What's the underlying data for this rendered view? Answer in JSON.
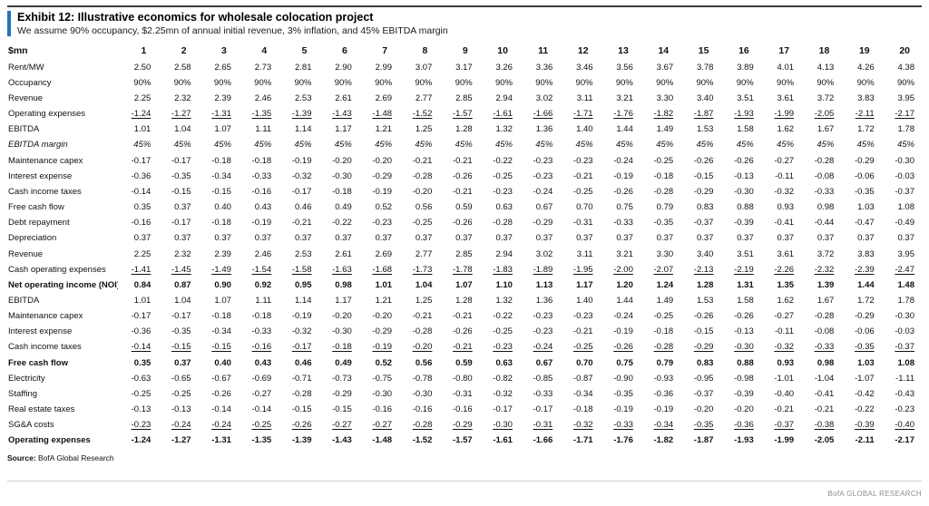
{
  "header": {
    "title": "Exhibit 12: Illustrative economics for wholesale colocation project",
    "subtitle": "We assume 90% occupancy, $2.25mn of annual initial revenue, 3% inflation, and 45% EBITDA margin"
  },
  "colors": {
    "accent_blue": "#2472ba",
    "brand_gray": "#8a8f94"
  },
  "table": {
    "unit_header": "$mn",
    "year_headers": [
      "1",
      "2",
      "3",
      "4",
      "5",
      "6",
      "7",
      "8",
      "9",
      "10",
      "11",
      "12",
      "13",
      "14",
      "15",
      "16",
      "17",
      "18",
      "19",
      "20"
    ],
    "rows": [
      {
        "label": "Rent/MW",
        "values": [
          "2.50",
          "2.58",
          "2.65",
          "2.73",
          "2.81",
          "2.90",
          "2.99",
          "3.07",
          "3.17",
          "3.26",
          "3.36",
          "3.46",
          "3.56",
          "3.67",
          "3.78",
          "3.89",
          "4.01",
          "4.13",
          "4.26",
          "4.38"
        ]
      },
      {
        "label": "Occupancy",
        "values": [
          "90%",
          "90%",
          "90%",
          "90%",
          "90%",
          "90%",
          "90%",
          "90%",
          "90%",
          "90%",
          "90%",
          "90%",
          "90%",
          "90%",
          "90%",
          "90%",
          "90%",
          "90%",
          "90%",
          "90%"
        ]
      },
      {
        "label": "Revenue",
        "values": [
          "2.25",
          "2.32",
          "2.39",
          "2.46",
          "2.53",
          "2.61",
          "2.69",
          "2.77",
          "2.85",
          "2.94",
          "3.02",
          "3.11",
          "3.21",
          "3.30",
          "3.40",
          "3.51",
          "3.61",
          "3.72",
          "3.83",
          "3.95"
        ]
      },
      {
        "label": "Operating expenses",
        "underline": true,
        "values": [
          "-1.24",
          "-1.27",
          "-1.31",
          "-1.35",
          "-1.39",
          "-1.43",
          "-1.48",
          "-1.52",
          "-1.57",
          "-1.61",
          "-1.66",
          "-1.71",
          "-1.76",
          "-1.82",
          "-1.87",
          "-1.93",
          "-1.99",
          "-2.05",
          "-2.11",
          "-2.17"
        ]
      },
      {
        "label": "EBITDA",
        "values": [
          "1.01",
          "1.04",
          "1.07",
          "1.11",
          "1.14",
          "1.17",
          "1.21",
          "1.25",
          "1.28",
          "1.32",
          "1.36",
          "1.40",
          "1.44",
          "1.49",
          "1.53",
          "1.58",
          "1.62",
          "1.67",
          "1.72",
          "1.78"
        ]
      },
      {
        "label": "EBITDA margin",
        "italic": true,
        "values": [
          "45%",
          "45%",
          "45%",
          "45%",
          "45%",
          "45%",
          "45%",
          "45%",
          "45%",
          "45%",
          "45%",
          "45%",
          "45%",
          "45%",
          "45%",
          "45%",
          "45%",
          "45%",
          "45%",
          "45%"
        ]
      },
      {
        "label": "Maintenance capex",
        "values": [
          "-0.17",
          "-0.17",
          "-0.18",
          "-0.18",
          "-0.19",
          "-0.20",
          "-0.20",
          "-0.21",
          "-0.21",
          "-0.22",
          "-0.23",
          "-0.23",
          "-0.24",
          "-0.25",
          "-0.26",
          "-0.26",
          "-0.27",
          "-0.28",
          "-0.29",
          "-0.30"
        ]
      },
      {
        "label": "Interest expense",
        "values": [
          "-0.36",
          "-0.35",
          "-0.34",
          "-0.33",
          "-0.32",
          "-0.30",
          "-0.29",
          "-0.28",
          "-0.26",
          "-0.25",
          "-0.23",
          "-0.21",
          "-0.19",
          "-0.18",
          "-0.15",
          "-0.13",
          "-0.11",
          "-0.08",
          "-0.06",
          "-0.03"
        ]
      },
      {
        "label": "Cash income taxes",
        "values": [
          "-0.14",
          "-0.15",
          "-0.15",
          "-0.16",
          "-0.17",
          "-0.18",
          "-0.19",
          "-0.20",
          "-0.21",
          "-0.23",
          "-0.24",
          "-0.25",
          "-0.26",
          "-0.28",
          "-0.29",
          "-0.30",
          "-0.32",
          "-0.33",
          "-0.35",
          "-0.37"
        ]
      },
      {
        "label": "Free cash flow",
        "values": [
          "0.35",
          "0.37",
          "0.40",
          "0.43",
          "0.46",
          "0.49",
          "0.52",
          "0.56",
          "0.59",
          "0.63",
          "0.67",
          "0.70",
          "0.75",
          "0.79",
          "0.83",
          "0.88",
          "0.93",
          "0.98",
          "1.03",
          "1.08"
        ]
      },
      {
        "label": "Debt repayment",
        "values": [
          "-0.16",
          "-0.17",
          "-0.18",
          "-0.19",
          "-0.21",
          "-0.22",
          "-0.23",
          "-0.25",
          "-0.26",
          "-0.28",
          "-0.29",
          "-0.31",
          "-0.33",
          "-0.35",
          "-0.37",
          "-0.39",
          "-0.41",
          "-0.44",
          "-0.47",
          "-0.49"
        ]
      },
      {
        "label": "Depreciation",
        "values": [
          "0.37",
          "0.37",
          "0.37",
          "0.37",
          "0.37",
          "0.37",
          "0.37",
          "0.37",
          "0.37",
          "0.37",
          "0.37",
          "0.37",
          "0.37",
          "0.37",
          "0.37",
          "0.37",
          "0.37",
          "0.37",
          "0.37",
          "0.37"
        ]
      },
      {
        "label": "Revenue",
        "values": [
          "2.25",
          "2.32",
          "2.39",
          "2.46",
          "2.53",
          "2.61",
          "2.69",
          "2.77",
          "2.85",
          "2.94",
          "3.02",
          "3.11",
          "3.21",
          "3.30",
          "3.40",
          "3.51",
          "3.61",
          "3.72",
          "3.83",
          "3.95"
        ]
      },
      {
        "label": "Cash operating expenses",
        "underline": true,
        "values": [
          "-1.41",
          "-1.45",
          "-1.49",
          "-1.54",
          "-1.58",
          "-1.63",
          "-1.68",
          "-1.73",
          "-1.78",
          "-1.83",
          "-1.89",
          "-1.95",
          "-2.00",
          "-2.07",
          "-2.13",
          "-2.19",
          "-2.26",
          "-2.32",
          "-2.39",
          "-2.47"
        ]
      },
      {
        "label": "Net operating income (NOI)",
        "bold": true,
        "values": [
          "0.84",
          "0.87",
          "0.90",
          "0.92",
          "0.95",
          "0.98",
          "1.01",
          "1.04",
          "1.07",
          "1.10",
          "1.13",
          "1.17",
          "1.20",
          "1.24",
          "1.28",
          "1.31",
          "1.35",
          "1.39",
          "1.44",
          "1.48"
        ]
      },
      {
        "label": "EBITDA",
        "values": [
          "1.01",
          "1.04",
          "1.07",
          "1.11",
          "1.14",
          "1.17",
          "1.21",
          "1.25",
          "1.28",
          "1.32",
          "1.36",
          "1.40",
          "1.44",
          "1.49",
          "1.53",
          "1.58",
          "1.62",
          "1.67",
          "1.72",
          "1.78"
        ]
      },
      {
        "label": "Maintenance capex",
        "values": [
          "-0.17",
          "-0.17",
          "-0.18",
          "-0.18",
          "-0.19",
          "-0.20",
          "-0.20",
          "-0.21",
          "-0.21",
          "-0.22",
          "-0.23",
          "-0.23",
          "-0.24",
          "-0.25",
          "-0.26",
          "-0.26",
          "-0.27",
          "-0.28",
          "-0.29",
          "-0.30"
        ]
      },
      {
        "label": "Interest expense",
        "values": [
          "-0.36",
          "-0.35",
          "-0.34",
          "-0.33",
          "-0.32",
          "-0.30",
          "-0.29",
          "-0.28",
          "-0.26",
          "-0.25",
          "-0.23",
          "-0.21",
          "-0.19",
          "-0.18",
          "-0.15",
          "-0.13",
          "-0.11",
          "-0.08",
          "-0.06",
          "-0.03"
        ]
      },
      {
        "label": "Cash income taxes",
        "underline": true,
        "values": [
          "-0.14",
          "-0.15",
          "-0.15",
          "-0.16",
          "-0.17",
          "-0.18",
          "-0.19",
          "-0.20",
          "-0.21",
          "-0.23",
          "-0.24",
          "-0.25",
          "-0.26",
          "-0.28",
          "-0.29",
          "-0.30",
          "-0.32",
          "-0.33",
          "-0.35",
          "-0.37"
        ]
      },
      {
        "label": "Free cash flow",
        "bold": true,
        "values": [
          "0.35",
          "0.37",
          "0.40",
          "0.43",
          "0.46",
          "0.49",
          "0.52",
          "0.56",
          "0.59",
          "0.63",
          "0.67",
          "0.70",
          "0.75",
          "0.79",
          "0.83",
          "0.88",
          "0.93",
          "0.98",
          "1.03",
          "1.08"
        ]
      },
      {
        "label": "Electricity",
        "values": [
          "-0.63",
          "-0.65",
          "-0.67",
          "-0.69",
          "-0.71",
          "-0.73",
          "-0.75",
          "-0.78",
          "-0.80",
          "-0.82",
          "-0.85",
          "-0.87",
          "-0.90",
          "-0.93",
          "-0.95",
          "-0.98",
          "-1.01",
          "-1.04",
          "-1.07",
          "-1.11"
        ]
      },
      {
        "label": "Staffing",
        "values": [
          "-0.25",
          "-0.25",
          "-0.26",
          "-0.27",
          "-0.28",
          "-0.29",
          "-0.30",
          "-0.30",
          "-0.31",
          "-0.32",
          "-0.33",
          "-0.34",
          "-0.35",
          "-0.36",
          "-0.37",
          "-0.39",
          "-0.40",
          "-0.41",
          "-0.42",
          "-0.43"
        ]
      },
      {
        "label": "Real estate taxes",
        "values": [
          "-0.13",
          "-0.13",
          "-0.14",
          "-0.14",
          "-0.15",
          "-0.15",
          "-0.16",
          "-0.16",
          "-0.16",
          "-0.17",
          "-0.17",
          "-0.18",
          "-0.19",
          "-0.19",
          "-0.20",
          "-0.20",
          "-0.21",
          "-0.21",
          "-0.22",
          "-0.23"
        ]
      },
      {
        "label": "SG&A costs",
        "underline": true,
        "values": [
          "-0.23",
          "-0.24",
          "-0.24",
          "-0.25",
          "-0.26",
          "-0.27",
          "-0.27",
          "-0.28",
          "-0.29",
          "-0.30",
          "-0.31",
          "-0.32",
          "-0.33",
          "-0.34",
          "-0.35",
          "-0.36",
          "-0.37",
          "-0.38",
          "-0.39",
          "-0.40"
        ]
      },
      {
        "label": "Operating expenses",
        "bold": true,
        "values": [
          "-1.24",
          "-1.27",
          "-1.31",
          "-1.35",
          "-1.39",
          "-1.43",
          "-1.48",
          "-1.52",
          "-1.57",
          "-1.61",
          "-1.66",
          "-1.71",
          "-1.76",
          "-1.82",
          "-1.87",
          "-1.93",
          "-1.99",
          "-2.05",
          "-2.11",
          "-2.17"
        ]
      }
    ]
  },
  "footer": {
    "source_label": "Source:",
    "source_text": "BofA Global Research",
    "brand": "BofA GLOBAL RESEARCH"
  }
}
